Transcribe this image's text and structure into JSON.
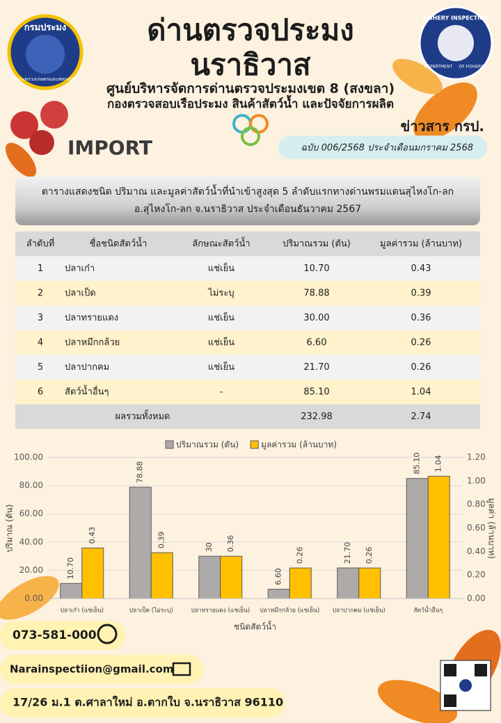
{
  "header": {
    "title_line1": "ด่านตรวจประมง",
    "title_line2": "นราธิวาส",
    "subtitle_line1": "ศูนย์บริหารจัดการด่านตรวจประมงเขต 8 (สงขลา)",
    "subtitle_line2": "กองตรวจสอบเรือประมง สินค้าสัตว์น้ำ และปัจจัยการผลิต",
    "news": "ข่าวสาร กรป.",
    "section": "IMPORT",
    "issue": "ฉบับ 006/2568 ประจำเดือนมกราคม  2568",
    "logo_left_top": "กรมประมง",
    "logo_left_bottom": "กระทรวงเกษตรและสหกรณ์",
    "logo_right_top": "FISHERY INSPECTION",
    "logo_right_left": "DEPARTMENT",
    "logo_right_right": "OF FISHERIES"
  },
  "table": {
    "caption_line1": "ตารางแสดงชนิด ปริมาณ และมูลค่าสัตว์น้ำที่นำเข้าสูงสุด 5 ลำดับแรกทางด่านพรมแดนสุไหงโก-ลก",
    "caption_line2": "อ.สุไหงโก-ลก จ.นราธิวาส ประจำเดือนธันวาคม  2567",
    "columns": [
      "ลำดับที่",
      "ชื่อชนิดสัตว์น้ำ",
      "ลักษณะสัตว์น้ำ",
      "ปริมาณรวม (ตัน)",
      "มูลค่ารวม (ล้านบาท)"
    ],
    "rows": [
      [
        "1",
        "ปลาเก๋า",
        "แช่เย็น",
        "10.70",
        "0.43"
      ],
      [
        "2",
        "ปลาเป็ด",
        "ไม่ระบุ",
        "78.88",
        "0.39"
      ],
      [
        "3",
        "ปลาทรายแดง",
        "แช่เย็น",
        "30.00",
        "0.36"
      ],
      [
        "4",
        "ปลาหมึกกล้วย",
        "แช่เย็น",
        "6.60",
        "0.26"
      ],
      [
        "5",
        "ปลาปากคม",
        "แช่เย็น",
        "21.70",
        "0.26"
      ],
      [
        "6",
        "สัตว์น้ำอื่นๆ",
        "-",
        "85.10",
        "1.04"
      ]
    ],
    "total": {
      "label": "ผลรวมทั้งหมด",
      "quantity": "232.98",
      "value": "2.74"
    }
  },
  "chart_data": {
    "type": "bar",
    "x_label": "ชนิดสัตว์น้ำ",
    "y_label": "ปริมาณ (ตัน)",
    "y2_label": "มูลค่า (ล้านบาท)",
    "categories": [
      "ปลาเก๋า (แช่เย็น)",
      "ปลาเป็ด (ไม่ระบุ)",
      "ปลาทรายแดง (แช่เย็น)",
      "ปลาหมึกกล้วย (แช่เย็น)",
      "ปลาปากคม (แช่เย็น)",
      "สัตว์น้ำอื่นๆ"
    ],
    "series": [
      {
        "name": "ปริมาณรวม (ตัน)",
        "color": "#aeaaaa",
        "values": [
          10.7,
          78.88,
          30,
          6.6,
          21.7,
          85.1
        ],
        "value_labels": [
          "10.70",
          "78.88",
          "30",
          "6.60",
          "21.70",
          "85.10"
        ]
      },
      {
        "name": "มูลค่ารวม (ล้านบาท)",
        "color": "#ffc000",
        "axis": "y2",
        "values": [
          0.43,
          0.39,
          0.36,
          0.26,
          0.26,
          1.04
        ]
      }
    ],
    "ylim": [
      0,
      100
    ],
    "yticks": [
      {
        "value": 0,
        "label": "0.00"
      },
      {
        "value": 20,
        "label": "20.00"
      },
      {
        "value": 40,
        "label": "40.00"
      },
      {
        "value": 60,
        "label": "60.00"
      },
      {
        "value": 80,
        "label": "80.00"
      },
      {
        "value": 100,
        "label": "100.00"
      }
    ],
    "y2lim": [
      0,
      1.2
    ],
    "y2ticks": [
      {
        "value": 0,
        "label": "0.00"
      },
      {
        "value": 0.2,
        "label": "0.20"
      },
      {
        "value": 0.4,
        "label": "0.40"
      },
      {
        "value": 0.6,
        "label": "0.60"
      },
      {
        "value": 0.8,
        "label": "0.80"
      },
      {
        "value": 1,
        "label": "1.00"
      },
      {
        "value": 1.2,
        "label": "1.20"
      }
    ],
    "grid": true,
    "legend": "top"
  },
  "contact": {
    "phone": "073-581-000",
    "email": "Narainspectiion@gmail.com",
    "address": "17/26 ม.1 ต.ศาลาใหม่ อ.ตากใบ จ.นราธิวาส 96110"
  }
}
